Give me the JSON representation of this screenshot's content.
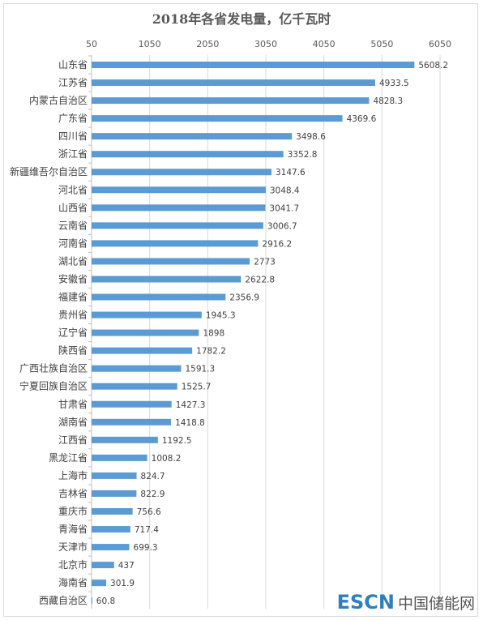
{
  "chart_data": {
    "type": "bar",
    "orientation": "horizontal",
    "title": "2018年各省发电量，亿千瓦时",
    "xlim": [
      50,
      6050
    ],
    "xticks": [
      50,
      1050,
      2050,
      3050,
      4050,
      5050,
      6050
    ],
    "axis_position": "top",
    "grid": true,
    "bar_color": "#5b9bd5",
    "categories": [
      "山东省",
      "江苏省",
      "内蒙古自治区",
      "广东省",
      "四川省",
      "浙江省",
      "新疆维吾尔自治区",
      "河北省",
      "山西省",
      "云南省",
      "河南省",
      "湖北省",
      "安徽省",
      "福建省",
      "贵州省",
      "辽宁省",
      "陕西省",
      "广西壮族自治区",
      "宁夏回族自治区",
      "甘肃省",
      "湖南省",
      "江西省",
      "黑龙江省",
      "上海市",
      "吉林省",
      "重庆市",
      "青海省",
      "天津市",
      "北京市",
      "海南省",
      "西藏自治区"
    ],
    "values": [
      5608.2,
      4933.5,
      4828.3,
      4369.6,
      3498.6,
      3352.8,
      3147.6,
      3048.4,
      3041.7,
      3006.7,
      2916.2,
      2773,
      2622.8,
      2356.9,
      1945.3,
      1898,
      1782.2,
      1591.3,
      1525.7,
      1427.3,
      1418.8,
      1192.5,
      1008.2,
      824.7,
      822.9,
      756.6,
      717.4,
      699.3,
      437,
      301.9,
      60.8
    ],
    "value_labels": [
      "5608.2",
      "4933.5",
      "4828.3",
      "4369.6",
      "3498.6",
      "3352.8",
      "3147.6",
      "3048.4",
      "3041.7",
      "3006.7",
      "2916.2",
      "2773",
      "2622.8",
      "2356.9",
      "1945.3",
      "1898",
      "1782.2",
      "1591.3",
      "1525.7",
      "1427.3",
      "1418.8",
      "1192.5",
      "1008.2",
      "824.7",
      "822.9",
      "756.6",
      "717.4",
      "699.3",
      "437",
      "301.9",
      "60.8"
    ]
  },
  "watermark": {
    "logo": "ESCN",
    "text": "中国储能网"
  }
}
